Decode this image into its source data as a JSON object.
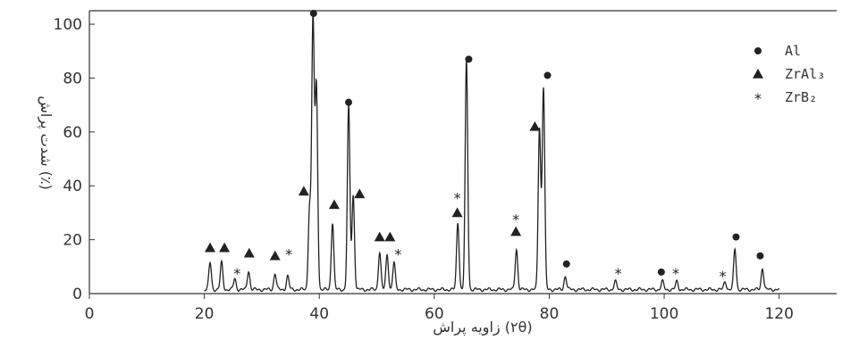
{
  "chart_data": {
    "type": "line",
    "xlabel": "زاویه پراش (۲θ)",
    "ylabel": "شدت پراش (٪)",
    "xlim": [
      0,
      130
    ],
    "ylim": [
      0,
      105
    ],
    "xticks": [
      0,
      20,
      40,
      60,
      80,
      100,
      120
    ],
    "yticks": [
      0,
      20,
      40,
      60,
      80,
      100
    ],
    "grid": false,
    "legend_position": "top-right",
    "colors": {
      "line": "#222222",
      "axis": "#333333",
      "background": "#ffffff"
    },
    "legend": [
      {
        "marker": "circle",
        "label": "Al"
      },
      {
        "marker": "triangle",
        "label": "ZrAl₃"
      },
      {
        "marker": "star",
        "label": "ZrB₂"
      }
    ],
    "baseline": 1.5,
    "peaks": [
      {
        "x": 21.0,
        "y": 10,
        "phase": "ZrAl3"
      },
      {
        "x": 23.0,
        "y": 10,
        "phase": "ZrAl3"
      },
      {
        "x": 25.3,
        "y": 4,
        "phase": "ZrB2"
      },
      {
        "x": 27.7,
        "y": 7,
        "phase": "ZrAl3"
      },
      {
        "x": 32.3,
        "y": 6,
        "phase": "ZrAl3"
      },
      {
        "x": 34.5,
        "y": 5,
        "phase": "ZrB2"
      },
      {
        "x": 38.3,
        "y": 30,
        "phase": "ZrAl3"
      },
      {
        "x": 38.9,
        "y": 100,
        "phase": "Al"
      },
      {
        "x": 39.5,
        "y": 75,
        "phase": "Al"
      },
      {
        "x": 42.3,
        "y": 25,
        "phase": "ZrAl3"
      },
      {
        "x": 45.1,
        "y": 68,
        "phase": "Al"
      },
      {
        "x": 45.9,
        "y": 35,
        "phase": "ZrAl3"
      },
      {
        "x": 50.5,
        "y": 14,
        "phase": "ZrAl3"
      },
      {
        "x": 51.8,
        "y": 13,
        "phase": "ZrAl3"
      },
      {
        "x": 53.0,
        "y": 10,
        "phase": "ZrB2"
      },
      {
        "x": 64.1,
        "y": 25,
        "phase": "ZrB2"
      },
      {
        "x": 65.6,
        "y": 85,
        "phase": "Al"
      },
      {
        "x": 74.3,
        "y": 15,
        "phase": "ZrB2"
      },
      {
        "x": 78.3,
        "y": 60,
        "phase": "ZrAl3"
      },
      {
        "x": 79.0,
        "y": 75,
        "phase": "Al"
      },
      {
        "x": 82.8,
        "y": 5,
        "phase": "Al"
      },
      {
        "x": 91.5,
        "y": 3,
        "phase": "ZrB2"
      },
      {
        "x": 99.7,
        "y": 3,
        "phase": "Al"
      },
      {
        "x": 102.2,
        "y": 3,
        "phase": "ZrB2"
      },
      {
        "x": 110.6,
        "y": 3,
        "phase": "ZrB2"
      },
      {
        "x": 112.3,
        "y": 15,
        "phase": "Al"
      },
      {
        "x": 117.1,
        "y": 8,
        "phase": "Al"
      }
    ],
    "markers": [
      {
        "x": 21.0,
        "y": 17,
        "symbol": "triangle"
      },
      {
        "x": 23.5,
        "y": 17,
        "symbol": "triangle"
      },
      {
        "x": 25.7,
        "y": 8,
        "symbol": "star"
      },
      {
        "x": 27.8,
        "y": 15,
        "symbol": "triangle"
      },
      {
        "x": 32.3,
        "y": 14,
        "symbol": "triangle"
      },
      {
        "x": 34.7,
        "y": 15,
        "symbol": "star"
      },
      {
        "x": 37.3,
        "y": 38,
        "symbol": "triangle"
      },
      {
        "x": 39.0,
        "y": 104,
        "symbol": "circle"
      },
      {
        "x": 42.6,
        "y": 33,
        "symbol": "triangle"
      },
      {
        "x": 45.1,
        "y": 71,
        "symbol": "circle"
      },
      {
        "x": 47.0,
        "y": 37,
        "symbol": "triangle"
      },
      {
        "x": 50.5,
        "y": 21,
        "symbol": "triangle"
      },
      {
        "x": 52.3,
        "y": 21,
        "symbol": "triangle"
      },
      {
        "x": 53.7,
        "y": 15,
        "symbol": "star"
      },
      {
        "x": 64.0,
        "y": 36,
        "symbol": "star"
      },
      {
        "x": 64.0,
        "y": 30,
        "symbol": "triangle"
      },
      {
        "x": 66.0,
        "y": 87,
        "symbol": "circle"
      },
      {
        "x": 74.2,
        "y": 28,
        "symbol": "star"
      },
      {
        "x": 74.2,
        "y": 23,
        "symbol": "triangle"
      },
      {
        "x": 77.5,
        "y": 62,
        "symbol": "triangle"
      },
      {
        "x": 79.7,
        "y": 81,
        "symbol": "circle"
      },
      {
        "x": 83.0,
        "y": 11,
        "symbol": "circle"
      },
      {
        "x": 92.0,
        "y": 8,
        "symbol": "star"
      },
      {
        "x": 99.5,
        "y": 8,
        "symbol": "circle"
      },
      {
        "x": 102.0,
        "y": 8,
        "symbol": "star"
      },
      {
        "x": 110.2,
        "y": 7,
        "symbol": "star"
      },
      {
        "x": 112.5,
        "y": 21,
        "symbol": "circle"
      },
      {
        "x": 116.7,
        "y": 14,
        "symbol": "circle"
      }
    ]
  }
}
